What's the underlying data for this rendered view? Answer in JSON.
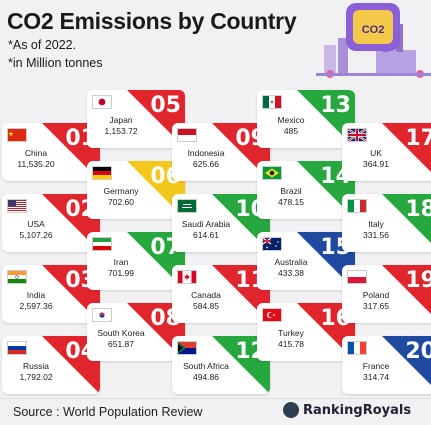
{
  "title": "CO2 Emissions by Country",
  "notes": [
    "*As of 2022.",
    "*in Million tonnes"
  ],
  "badge": "CO2",
  "source": "Source : World Population Review",
  "brand": "RankingRoyals",
  "chart_data": {
    "type": "table",
    "title": "CO2 Emissions by Country",
    "unit": "Million tonnes",
    "rows": [
      {
        "rank": "01",
        "country": "China",
        "value": "11,535.20",
        "flag": "cn",
        "color": "#e0262c"
      },
      {
        "rank": "02",
        "country": "USA",
        "value": "5,107.26",
        "flag": "us",
        "color": "#e0262c"
      },
      {
        "rank": "03",
        "country": "India",
        "value": "2,597.36",
        "flag": "in",
        "color": "#e0262c"
      },
      {
        "rank": "04",
        "country": "Russia",
        "value": "1,792.02",
        "flag": "ru",
        "color": "#e0262c"
      },
      {
        "rank": "05",
        "country": "Japan",
        "value": "1,153.72",
        "flag": "jp",
        "color": "#e0262c"
      },
      {
        "rank": "06",
        "country": "Germany",
        "value": "702.60",
        "flag": "de",
        "color": "#f2c81c"
      },
      {
        "rank": "07",
        "country": "Iran",
        "value": "701.99",
        "flag": "ir",
        "color": "#27a83e"
      },
      {
        "rank": "08",
        "country": "South Korea",
        "value": "651.87",
        "flag": "kr",
        "color": "#e0262c"
      },
      {
        "rank": "09",
        "country": "Indonesia",
        "value": "625.66",
        "flag": "id",
        "color": "#e0262c"
      },
      {
        "rank": "10",
        "country": "Saudi Arabia",
        "value": "614.61",
        "flag": "sa",
        "color": "#27a83e"
      },
      {
        "rank": "11",
        "country": "Canada",
        "value": "584.85",
        "flag": "ca",
        "color": "#e0262c"
      },
      {
        "rank": "12",
        "country": "South Africa",
        "value": "494.86",
        "flag": "za",
        "color": "#27a83e"
      },
      {
        "rank": "13",
        "country": "Mexico",
        "value": "485",
        "flag": "mx",
        "color": "#27a83e"
      },
      {
        "rank": "14",
        "country": "Brazil",
        "value": "478.15",
        "flag": "br",
        "color": "#27a83e"
      },
      {
        "rank": "15",
        "country": "Australia",
        "value": "433.38",
        "flag": "au",
        "color": "#1f4aa0"
      },
      {
        "rank": "16",
        "country": "Turkey",
        "value": "415.78",
        "flag": "tr",
        "color": "#e0262c"
      },
      {
        "rank": "17",
        "country": "UK",
        "value": "364.91",
        "flag": "gb",
        "color": "#e0262c"
      },
      {
        "rank": "18",
        "country": "Italy",
        "value": "331.56",
        "flag": "it",
        "color": "#27a83e"
      },
      {
        "rank": "19",
        "country": "Poland",
        "value": "317.65",
        "flag": "pl",
        "color": "#e0262c"
      },
      {
        "rank": "20",
        "country": "France",
        "value": "314.74",
        "flag": "fr",
        "color": "#1f4aa0"
      }
    ]
  }
}
